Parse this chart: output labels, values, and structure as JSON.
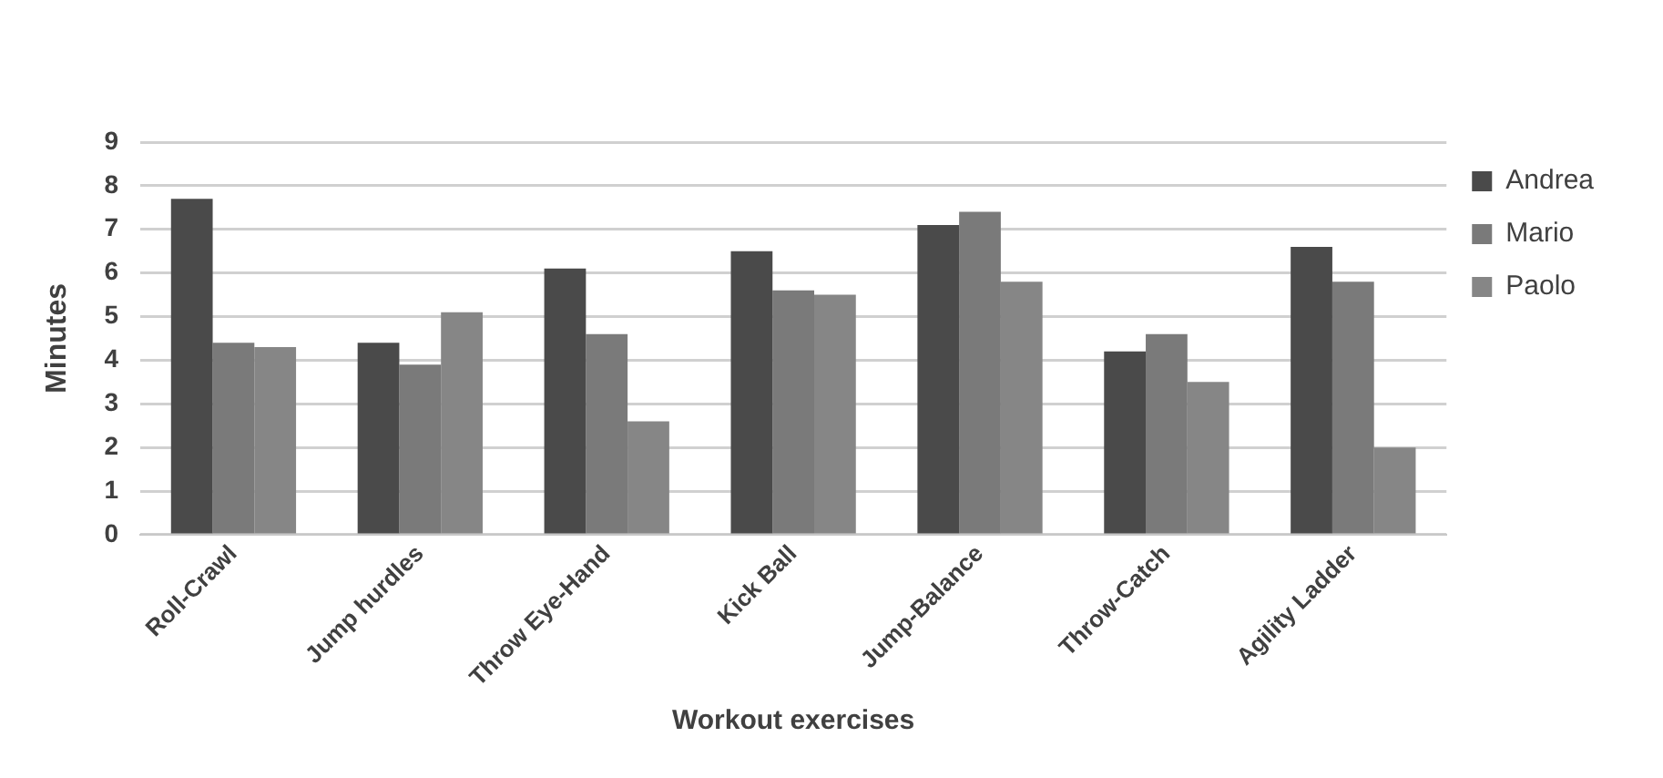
{
  "chart_data": {
    "type": "bar",
    "xlabel": "Workout exercises",
    "ylabel": "Minutes",
    "categories": [
      "Roll-Crawl",
      "Jump hurdles",
      "Throw Eye-Hand",
      "Kick Ball",
      "Jump-Balance",
      "Throw-Catch",
      "Agility Ladder"
    ],
    "series": [
      {
        "name": "Andrea",
        "color": "#4a4a4a",
        "values": [
          7.7,
          4.4,
          6.1,
          6.5,
          7.1,
          4.2,
          6.6
        ]
      },
      {
        "name": "Mario",
        "color": "#7a7a7a",
        "values": [
          4.4,
          3.9,
          4.6,
          5.6,
          7.4,
          4.6,
          5.8
        ]
      },
      {
        "name": "Paolo",
        "color": "#868686",
        "values": [
          4.3,
          5.1,
          2.6,
          5.5,
          5.8,
          3.5,
          2.0
        ]
      }
    ],
    "ylim": [
      0,
      9
    ],
    "yticks": [
      0,
      1,
      2,
      3,
      4,
      5,
      6,
      7,
      8,
      9
    ],
    "grid": "y",
    "legend": "top right"
  }
}
